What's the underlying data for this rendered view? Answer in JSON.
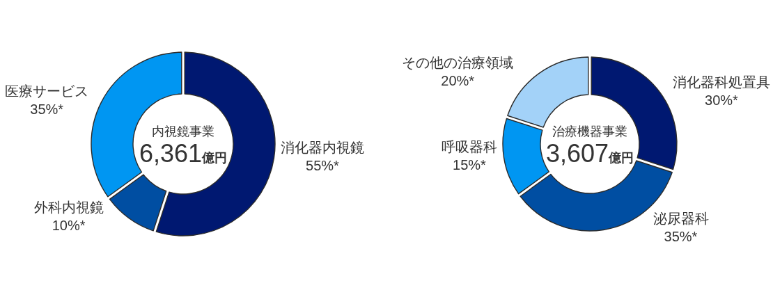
{
  "chart_data": [
    {
      "type": "donut",
      "title": "内視鏡事業",
      "subtitle": "6,361億円",
      "categories": [
        "消化器内視鏡",
        "外科内視鏡",
        "医療サービス"
      ],
      "values": [
        55,
        10,
        35
      ],
      "colors": [
        "#001871",
        "#004ea2",
        "#0096f2"
      ],
      "value_labels": [
        "55%*",
        "10%*",
        "35%*"
      ]
    },
    {
      "type": "donut",
      "title": "治療機器事業",
      "subtitle": "3,607億円",
      "categories": [
        "消化器科処置具",
        "泌尿器科",
        "呼吸器科",
        "その他の治療領域"
      ],
      "values": [
        30,
        35,
        15,
        20
      ],
      "colors": [
        "#001871",
        "#004ea2",
        "#0096f2",
        "#a3d2f8"
      ],
      "value_labels": [
        "30%*",
        "35%*",
        "15%*",
        "20%*"
      ]
    }
  ]
}
